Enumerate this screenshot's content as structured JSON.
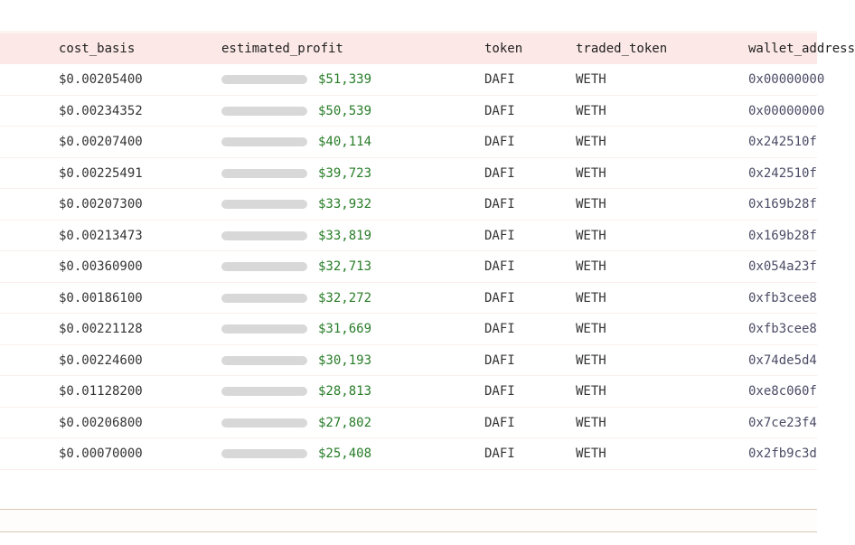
{
  "table": {
    "columns": [
      {
        "key": "cost_basis",
        "label": "cost_basis"
      },
      {
        "key": "estimated_profit",
        "label": "estimated_profit"
      },
      {
        "key": "token",
        "label": "token"
      },
      {
        "key": "traded_token",
        "label": "traded_token"
      },
      {
        "key": "wallet_address",
        "label": "wallet_address"
      }
    ],
    "profit_bar_max": 51339,
    "rows": [
      {
        "cost_basis": "$0.00205400",
        "estimated_profit": "$51,339",
        "profit_value": 51339,
        "token": "DAFI",
        "traded_token": "WETH",
        "wallet_address": "0x00000000"
      },
      {
        "cost_basis": "$0.00234352",
        "estimated_profit": "$50,539",
        "profit_value": 50539,
        "token": "DAFI",
        "traded_token": "WETH",
        "wallet_address": "0x00000000"
      },
      {
        "cost_basis": "$0.00207400",
        "estimated_profit": "$40,114",
        "profit_value": 40114,
        "token": "DAFI",
        "traded_token": "WETH",
        "wallet_address": "0x242510f"
      },
      {
        "cost_basis": "$0.00225491",
        "estimated_profit": "$39,723",
        "profit_value": 39723,
        "token": "DAFI",
        "traded_token": "WETH",
        "wallet_address": "0x242510f"
      },
      {
        "cost_basis": "$0.00207300",
        "estimated_profit": "$33,932",
        "profit_value": 33932,
        "token": "DAFI",
        "traded_token": "WETH",
        "wallet_address": "0x169b28f"
      },
      {
        "cost_basis": "$0.00213473",
        "estimated_profit": "$33,819",
        "profit_value": 33819,
        "token": "DAFI",
        "traded_token": "WETH",
        "wallet_address": "0x169b28f"
      },
      {
        "cost_basis": "$0.00360900",
        "estimated_profit": "$32,713",
        "profit_value": 32713,
        "token": "DAFI",
        "traded_token": "WETH",
        "wallet_address": "0x054a23f"
      },
      {
        "cost_basis": "$0.00186100",
        "estimated_profit": "$32,272",
        "profit_value": 32272,
        "token": "DAFI",
        "traded_token": "WETH",
        "wallet_address": "0xfb3cee8"
      },
      {
        "cost_basis": "$0.00221128",
        "estimated_profit": "$31,669",
        "profit_value": 31669,
        "token": "DAFI",
        "traded_token": "WETH",
        "wallet_address": "0xfb3cee8"
      },
      {
        "cost_basis": "$0.00224600",
        "estimated_profit": "$30,193",
        "profit_value": 30193,
        "token": "DAFI",
        "traded_token": "WETH",
        "wallet_address": "0x74de5d4"
      },
      {
        "cost_basis": "$0.01128200",
        "estimated_profit": "$28,813",
        "profit_value": 28813,
        "token": "DAFI",
        "traded_token": "WETH",
        "wallet_address": "0xe8c060f"
      },
      {
        "cost_basis": "$0.00206800",
        "estimated_profit": "$27,802",
        "profit_value": 27802,
        "token": "DAFI",
        "traded_token": "WETH",
        "wallet_address": "0x7ce23f4"
      },
      {
        "cost_basis": "$0.00070000",
        "estimated_profit": "$25,408",
        "profit_value": 25408,
        "token": "DAFI",
        "traded_token": "WETH",
        "wallet_address": "0x2fb9c3d"
      }
    ]
  },
  "colors": {
    "header_bg": "#fce9e7",
    "header_top_strip": "#fdf3f1",
    "row_separator": "#faeeec",
    "bar_fill": "#157a15",
    "bar_track": "#d8d8d8",
    "profit_text": "#277c27",
    "body_text": "#343434",
    "wallet_text": "#4b4b66",
    "footer_border": "#dbc8b7"
  }
}
